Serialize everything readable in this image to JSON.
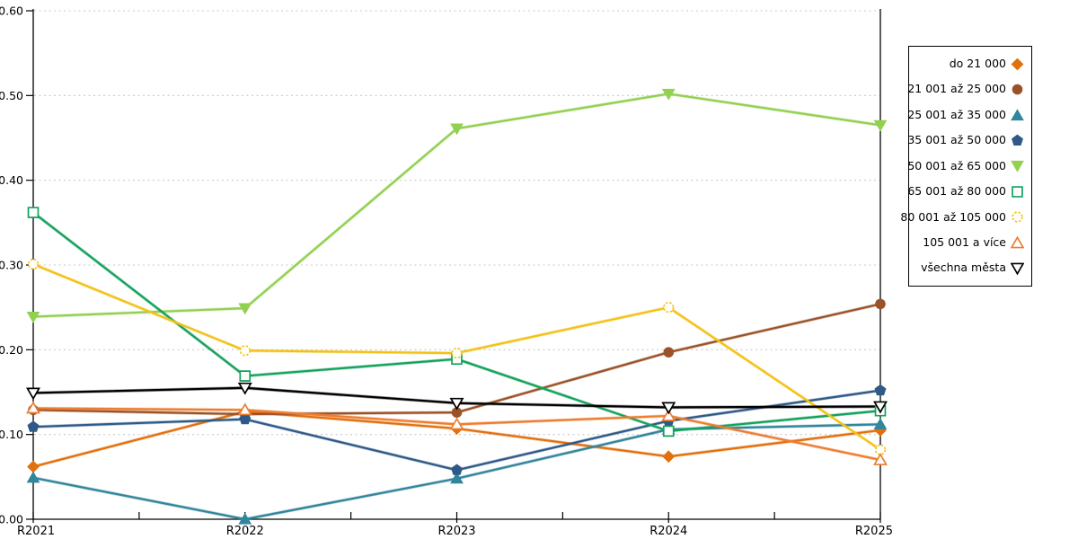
{
  "chart_data": {
    "type": "line",
    "title": "",
    "xlabel": "",
    "ylabel": "",
    "categories": [
      "R2021",
      "R2022",
      "R2023",
      "R2024",
      "R2025"
    ],
    "series": [
      {
        "name": "do 21 000",
        "color": "#E2700E",
        "marker": "diamond",
        "filled": true,
        "dashed": false,
        "values": [
          0.062,
          0.127,
          0.107,
          0.074,
          0.105
        ]
      },
      {
        "name": "21 001 až 25 000",
        "color": "#9A5228",
        "marker": "circle",
        "filled": true,
        "dashed": false,
        "values": [
          0.129,
          0.124,
          0.126,
          0.197,
          0.254
        ]
      },
      {
        "name": "25 001 až 35 000",
        "color": "#31859C",
        "marker": "triangle-up",
        "filled": true,
        "dashed": false,
        "values": [
          0.049,
          0.0,
          0.048,
          0.106,
          0.112
        ]
      },
      {
        "name": "35 001 až 50 000",
        "color": "#2F5A87",
        "marker": "pentagon",
        "filled": true,
        "dashed": false,
        "values": [
          0.109,
          0.118,
          0.058,
          0.116,
          0.152
        ]
      },
      {
        "name": "50 001 až 65 000",
        "color": "#92D050",
        "marker": "triangle-down",
        "filled": true,
        "dashed": false,
        "values": [
          0.239,
          0.249,
          0.461,
          0.502,
          0.465
        ]
      },
      {
        "name": "65 001 až 80 000",
        "color": "#14A15C",
        "marker": "square",
        "filled": false,
        "dashed": false,
        "values": [
          0.362,
          0.169,
          0.189,
          0.104,
          0.128
        ]
      },
      {
        "name": "80 001 až 105 000",
        "color": "#F3C117",
        "marker": "circle",
        "filled": false,
        "dashed": true,
        "values": [
          0.301,
          0.199,
          0.196,
          0.25,
          0.082
        ]
      },
      {
        "name": "105 001 a více",
        "color": "#ED7D31",
        "marker": "triangle-up",
        "filled": false,
        "dashed": false,
        "values": [
          0.131,
          0.129,
          0.112,
          0.122,
          0.07
        ]
      },
      {
        "name": "všechna města",
        "color": "#000000",
        "marker": "triangle-down",
        "filled": false,
        "dashed": false,
        "values": [
          0.149,
          0.155,
          0.137,
          0.132,
          0.133
        ]
      }
    ],
    "ylim": [
      0,
      0.6
    ],
    "ytick_labels": [
      "0.00",
      "0.10",
      "0.20",
      "0.30",
      "0.40",
      "0.50",
      "0.60"
    ],
    "ytick_values": [
      0,
      0.1,
      0.2,
      0.3,
      0.4,
      0.5,
      0.6
    ],
    "grid": "horizontal-dotted",
    "legend_position": "right"
  },
  "colors": {
    "background": "#FFFFFF",
    "grid": "#C8C8C8",
    "axis": "#000000",
    "text": "#000000"
  }
}
